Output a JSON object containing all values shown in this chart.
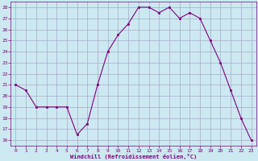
{
  "x": [
    0,
    1,
    2,
    3,
    4,
    5,
    6,
    7,
    8,
    9,
    10,
    11,
    12,
    13,
    14,
    15,
    16,
    17,
    18,
    19,
    20,
    21,
    22,
    23
  ],
  "y": [
    21,
    20.5,
    19,
    19,
    19,
    19,
    16.5,
    17.5,
    21,
    24,
    25.5,
    26.5,
    28,
    28,
    27.5,
    28,
    27,
    27.5,
    27,
    25,
    23,
    20.5,
    18,
    16
  ],
  "line_color": "#800080",
  "marker_color": "#800080",
  "bg_color": "#cce8f0",
  "grid_color": "#aaaacc",
  "xlabel": "Windchill (Refroidissement éolien,°C)",
  "xlabel_color": "#800080",
  "tick_color": "#800080",
  "ylim": [
    15.5,
    28.5
  ],
  "xlim": [
    -0.5,
    23.5
  ],
  "yticks": [
    16,
    17,
    18,
    19,
    20,
    21,
    22,
    23,
    24,
    25,
    26,
    27,
    28
  ],
  "xticks": [
    0,
    1,
    2,
    3,
    4,
    5,
    6,
    7,
    8,
    9,
    10,
    11,
    12,
    13,
    14,
    15,
    16,
    17,
    18,
    19,
    20,
    21,
    22,
    23
  ]
}
